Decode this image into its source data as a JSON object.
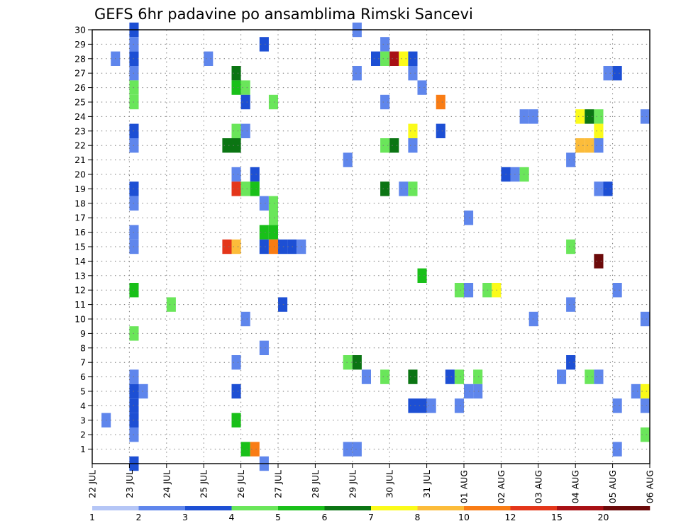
{
  "chart_data": {
    "type": "heatmap",
    "title": "GEFS 6hr padavine po ansamblima Rimski Sancevi",
    "xlabel": "",
    "ylabel": "",
    "x_tick_labels": [
      "22 JUL",
      "23 JUL",
      "24 JUL",
      "25 JUL",
      "26 JUL",
      "27 JUL",
      "28 JUL",
      "29 JUL",
      "30 JUL",
      "31 JUL",
      "01 AUG",
      "02 AUG",
      "03 AUG",
      "04 AUG",
      "05 AUG",
      "06 AUG"
    ],
    "y_tick_labels": [
      "1",
      "2",
      "3",
      "4",
      "5",
      "6",
      "7",
      "8",
      "9",
      "10",
      "11",
      "12",
      "13",
      "14",
      "15",
      "16",
      "17",
      "18",
      "19",
      "20",
      "21",
      "22",
      "23",
      "24",
      "25",
      "26",
      "27",
      "28",
      "29",
      "30"
    ],
    "x_range_days": [
      0,
      15
    ],
    "y_range": [
      0,
      30
    ],
    "grid": true,
    "colorbar": {
      "placement": "bottom",
      "labels": [
        "1",
        "2",
        "3",
        "4",
        "5",
        "6",
        "7",
        "8",
        "10",
        "12",
        "15",
        "20"
      ],
      "colors": [
        "#b5c6f6",
        "#5f86ec",
        "#1d4fd4",
        "#6ae65a",
        "#19c019",
        "#0b7513",
        "#fbfb1a",
        "#fcbc3a",
        "#f97c14",
        "#e4361a",
        "#a81014",
        "#6c0a0a"
      ]
    },
    "cells": [
      {
        "t": 0.25,
        "m": 3,
        "c": 1
      },
      {
        "t": 0.5,
        "m": 28,
        "c": 1
      },
      {
        "t": 1.0,
        "m": 30,
        "c": 2
      },
      {
        "t": 1.0,
        "m": 29,
        "c": 1
      },
      {
        "t": 1.0,
        "m": 28,
        "c": 2
      },
      {
        "t": 1.0,
        "m": 27,
        "c": 1
      },
      {
        "t": 1.0,
        "m": 26,
        "c": 3
      },
      {
        "t": 1.0,
        "m": 25,
        "c": 3
      },
      {
        "t": 1.0,
        "m": 23,
        "c": 2
      },
      {
        "t": 1.0,
        "m": 22,
        "c": 1
      },
      {
        "t": 1.0,
        "m": 19,
        "c": 2
      },
      {
        "t": 1.0,
        "m": 18,
        "c": 1
      },
      {
        "t": 1.0,
        "m": 15,
        "c": 1
      },
      {
        "t": 1.0,
        "m": 16,
        "c": 1
      },
      {
        "t": 1.0,
        "m": 12,
        "c": 4
      },
      {
        "t": 1.0,
        "m": 9,
        "c": 3
      },
      {
        "t": 1.0,
        "m": 6,
        "c": 1
      },
      {
        "t": 1.0,
        "m": 5,
        "c": 2
      },
      {
        "t": 1.0,
        "m": 4,
        "c": 2
      },
      {
        "t": 1.0,
        "m": 3,
        "c": 2
      },
      {
        "t": 1.0,
        "m": 2,
        "c": 1
      },
      {
        "t": 1.0,
        "m": 0,
        "c": 2
      },
      {
        "t": 1.25,
        "m": 5,
        "c": 1
      },
      {
        "t": 2.0,
        "m": 11,
        "c": 3
      },
      {
        "t": 3.0,
        "m": 28,
        "c": 1
      },
      {
        "t": 3.5,
        "m": 22,
        "c": 5
      },
      {
        "t": 3.5,
        "m": 15,
        "c": 9
      },
      {
        "t": 3.75,
        "m": 27,
        "c": 5
      },
      {
        "t": 3.75,
        "m": 26,
        "c": 4
      },
      {
        "t": 3.75,
        "m": 23,
        "c": 3
      },
      {
        "t": 3.75,
        "m": 22,
        "c": 5
      },
      {
        "t": 3.75,
        "m": 20,
        "c": 1
      },
      {
        "t": 3.75,
        "m": 19,
        "c": 9
      },
      {
        "t": 3.75,
        "m": 15,
        "c": 7
      },
      {
        "t": 3.75,
        "m": 7,
        "c": 1
      },
      {
        "t": 3.75,
        "m": 5,
        "c": 2
      },
      {
        "t": 3.75,
        "m": 3,
        "c": 4
      },
      {
        "t": 4.0,
        "m": 26,
        "c": 3
      },
      {
        "t": 4.0,
        "m": 25,
        "c": 2
      },
      {
        "t": 4.0,
        "m": 23,
        "c": 1
      },
      {
        "t": 4.0,
        "m": 19,
        "c": 3
      },
      {
        "t": 4.0,
        "m": 10,
        "c": 1
      },
      {
        "t": 4.0,
        "m": 1,
        "c": 4
      },
      {
        "t": 4.25,
        "m": 20,
        "c": 2
      },
      {
        "t": 4.25,
        "m": 19,
        "c": 4
      },
      {
        "t": 4.25,
        "m": 1,
        "c": 8
      },
      {
        "t": 4.5,
        "m": 29,
        "c": 2
      },
      {
        "t": 4.5,
        "m": 18,
        "c": 1
      },
      {
        "t": 4.5,
        "m": 16,
        "c": 4
      },
      {
        "t": 4.5,
        "m": 15,
        "c": 2
      },
      {
        "t": 4.5,
        "m": 8,
        "c": 1
      },
      {
        "t": 4.5,
        "m": 0,
        "c": 1
      },
      {
        "t": 4.75,
        "m": 25,
        "c": 3
      },
      {
        "t": 4.75,
        "m": 18,
        "c": 3
      },
      {
        "t": 4.75,
        "m": 17,
        "c": 3
      },
      {
        "t": 4.75,
        "m": 16,
        "c": 4
      },
      {
        "t": 4.75,
        "m": 15,
        "c": 8
      },
      {
        "t": 5.0,
        "m": 15,
        "c": 2
      },
      {
        "t": 5.0,
        "m": 11,
        "c": 2
      },
      {
        "t": 5.25,
        "m": 15,
        "c": 2
      },
      {
        "t": 5.5,
        "m": 15,
        "c": 1
      },
      {
        "t": 6.75,
        "m": 21,
        "c": 1
      },
      {
        "t": 6.75,
        "m": 7,
        "c": 3
      },
      {
        "t": 6.75,
        "m": 1,
        "c": 1
      },
      {
        "t": 7.0,
        "m": 30,
        "c": 1
      },
      {
        "t": 7.0,
        "m": 27,
        "c": 1
      },
      {
        "t": 7.0,
        "m": 7,
        "c": 5
      },
      {
        "t": 7.0,
        "m": 1,
        "c": 1
      },
      {
        "t": 7.25,
        "m": 6,
        "c": 1
      },
      {
        "t": 7.5,
        "m": 28,
        "c": 2
      },
      {
        "t": 7.75,
        "m": 29,
        "c": 1
      },
      {
        "t": 7.75,
        "m": 28,
        "c": 3
      },
      {
        "t": 7.75,
        "m": 25,
        "c": 1
      },
      {
        "t": 7.75,
        "m": 22,
        "c": 3
      },
      {
        "t": 7.75,
        "m": 19,
        "c": 5
      },
      {
        "t": 7.75,
        "m": 6,
        "c": 3
      },
      {
        "t": 8.0,
        "m": 28,
        "c": 10
      },
      {
        "t": 8.0,
        "m": 22,
        "c": 5
      },
      {
        "t": 8.25,
        "m": 28,
        "c": 6
      },
      {
        "t": 8.25,
        "m": 19,
        "c": 1
      },
      {
        "t": 8.5,
        "m": 28,
        "c": 2
      },
      {
        "t": 8.5,
        "m": 27,
        "c": 1
      },
      {
        "t": 8.5,
        "m": 23,
        "c": 6
      },
      {
        "t": 8.5,
        "m": 22,
        "c": 1
      },
      {
        "t": 8.5,
        "m": 19,
        "c": 3
      },
      {
        "t": 8.5,
        "m": 6,
        "c": 5
      },
      {
        "t": 8.5,
        "m": 4,
        "c": 2
      },
      {
        "t": 8.75,
        "m": 26,
        "c": 1
      },
      {
        "t": 8.75,
        "m": 13,
        "c": 4
      },
      {
        "t": 8.75,
        "m": 4,
        "c": 2
      },
      {
        "t": 9.0,
        "m": 4,
        "c": 1
      },
      {
        "t": 9.25,
        "m": 25,
        "c": 8
      },
      {
        "t": 9.25,
        "m": 23,
        "c": 2
      },
      {
        "t": 9.5,
        "m": 6,
        "c": 2
      },
      {
        "t": 9.75,
        "m": 12,
        "c": 3
      },
      {
        "t": 9.75,
        "m": 6,
        "c": 3
      },
      {
        "t": 9.75,
        "m": 4,
        "c": 1
      },
      {
        "t": 10.0,
        "m": 17,
        "c": 1
      },
      {
        "t": 10.0,
        "m": 12,
        "c": 1
      },
      {
        "t": 10.0,
        "m": 5,
        "c": 1
      },
      {
        "t": 10.25,
        "m": 6,
        "c": 3
      },
      {
        "t": 10.25,
        "m": 5,
        "c": 1
      },
      {
        "t": 10.5,
        "m": 12,
        "c": 3
      },
      {
        "t": 10.75,
        "m": 12,
        "c": 6
      },
      {
        "t": 11.0,
        "m": 20,
        "c": 2
      },
      {
        "t": 11.25,
        "m": 20,
        "c": 1
      },
      {
        "t": 11.5,
        "m": 24,
        "c": 1
      },
      {
        "t": 11.5,
        "m": 20,
        "c": 3
      },
      {
        "t": 11.75,
        "m": 24,
        "c": 1
      },
      {
        "t": 11.75,
        "m": 10,
        "c": 1
      },
      {
        "t": 12.5,
        "m": 6,
        "c": 1
      },
      {
        "t": 12.75,
        "m": 21,
        "c": 1
      },
      {
        "t": 12.75,
        "m": 15,
        "c": 3
      },
      {
        "t": 12.75,
        "m": 11,
        "c": 1
      },
      {
        "t": 12.75,
        "m": 7,
        "c": 2
      },
      {
        "t": 13.0,
        "m": 24,
        "c": 6
      },
      {
        "t": 13.0,
        "m": 22,
        "c": 7
      },
      {
        "t": 13.25,
        "m": 24,
        "c": 5
      },
      {
        "t": 13.25,
        "m": 22,
        "c": 7
      },
      {
        "t": 13.25,
        "m": 6,
        "c": 3
      },
      {
        "t": 13.5,
        "m": 24,
        "c": 3
      },
      {
        "t": 13.5,
        "m": 23,
        "c": 6
      },
      {
        "t": 13.5,
        "m": 22,
        "c": 1
      },
      {
        "t": 13.5,
        "m": 19,
        "c": 1
      },
      {
        "t": 13.5,
        "m": 14,
        "c": 11
      },
      {
        "t": 13.5,
        "m": 6,
        "c": 1
      },
      {
        "t": 13.75,
        "m": 27,
        "c": 1
      },
      {
        "t": 13.75,
        "m": 19,
        "c": 2
      },
      {
        "t": 14.0,
        "m": 27,
        "c": 2
      },
      {
        "t": 14.0,
        "m": 12,
        "c": 1
      },
      {
        "t": 14.0,
        "m": 4,
        "c": 1
      },
      {
        "t": 14.0,
        "m": 1,
        "c": 1
      },
      {
        "t": 14.5,
        "m": 5,
        "c": 1
      },
      {
        "t": 14.75,
        "m": 24,
        "c": 1
      },
      {
        "t": 14.75,
        "m": 10,
        "c": 1
      },
      {
        "t": 14.75,
        "m": 5,
        "c": 6
      },
      {
        "t": 14.75,
        "m": 4,
        "c": 1
      },
      {
        "t": 14.75,
        "m": 2,
        "c": 3
      }
    ]
  }
}
